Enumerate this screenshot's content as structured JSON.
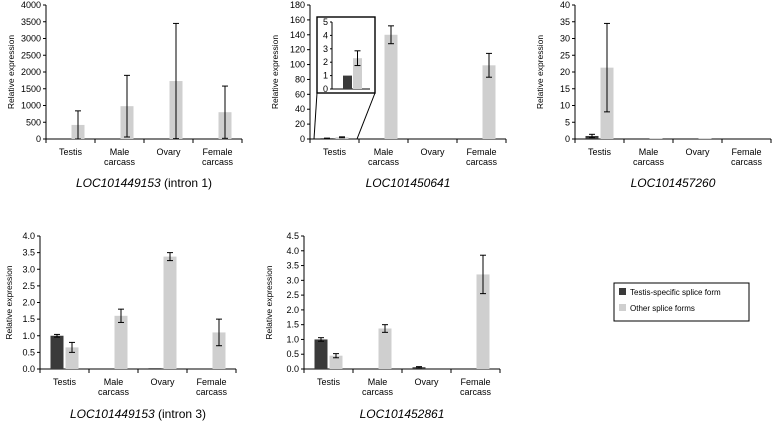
{
  "colors": {
    "testis_specific": "#3a3a3a",
    "other": "#cfcfcf",
    "axis": "#000000"
  },
  "legend": {
    "items": [
      {
        "label": "Testis-specific splice form",
        "color": "#3a3a3a"
      },
      {
        "label": "Other splice forms",
        "color": "#cfcfcf"
      }
    ]
  },
  "chart_data": [
    {
      "type": "bar",
      "gene": "LOC101449153",
      "suffix": " (intron 1)",
      "ylabel": "Relative expression",
      "ylim": [
        0,
        4000
      ],
      "yticks": [
        "0",
        "500",
        "1000",
        "1500",
        "2000",
        "2500",
        "3000",
        "3500",
        "4000"
      ],
      "categories": [
        [
          "Testis"
        ],
        [
          "Male",
          "carcass"
        ],
        [
          "Ovary"
        ],
        [
          "Female",
          "carcass"
        ]
      ],
      "series": [
        {
          "name": "Testis-specific splice form",
          "values": [
            null,
            null,
            null,
            null
          ],
          "errors": [
            null,
            null,
            null,
            null
          ]
        },
        {
          "name": "Other splice forms",
          "values": [
            420,
            980,
            1730,
            800
          ],
          "errors": [
            420,
            920,
            1720,
            780
          ]
        }
      ]
    },
    {
      "type": "bar",
      "gene": "LOC101450641",
      "suffix": "",
      "ylabel": "Relative expression",
      "ylim": [
        0,
        180
      ],
      "yticks": [
        "0",
        "20",
        "40",
        "60",
        "80",
        "100",
        "120",
        "140",
        "160",
        "180"
      ],
      "categories": [
        [
          "Testis"
        ],
        [
          "Male",
          "carcass"
        ],
        [
          "Ovary"
        ],
        [
          "Female",
          "carcass"
        ]
      ],
      "series": [
        {
          "name": "Testis-specific splice form",
          "values": [
            1,
            null,
            null,
            null
          ],
          "errors": [
            0.1,
            null,
            null,
            null
          ]
        },
        {
          "name": "Other splice forms",
          "values": [
            2.3,
            140,
            null,
            99
          ],
          "errors": [
            0.6,
            12,
            null,
            16
          ]
        }
      ],
      "inset": {
        "ylim": [
          0,
          5
        ],
        "yticks": [
          "0",
          "1",
          "2",
          "3",
          "4",
          "5"
        ],
        "values_testis_specific": 1,
        "values_other": 2.3,
        "error_other": 0.55
      }
    },
    {
      "type": "bar",
      "gene": "LOC101457260",
      "suffix": "",
      "ylabel": "Relative expression",
      "ylim": [
        0,
        40
      ],
      "yticks": [
        "0",
        "5",
        "10",
        "15",
        "20",
        "25",
        "30",
        "35",
        "40"
      ],
      "categories": [
        [
          "Testis"
        ],
        [
          "Male",
          "carcass"
        ],
        [
          "Ovary"
        ],
        [
          "Female",
          "carcass"
        ]
      ],
      "series": [
        {
          "name": "Testis-specific splice form",
          "values": [
            0.9,
            null,
            null,
            null
          ],
          "errors": [
            0.5,
            null,
            null,
            null
          ]
        },
        {
          "name": "Other splice forms",
          "values": [
            21.3,
            0.1,
            0.1,
            null
          ],
          "errors": [
            13.2,
            null,
            null,
            null
          ]
        }
      ]
    },
    {
      "type": "bar",
      "gene": "LOC101449153",
      "suffix": " (intron 3)",
      "ylabel": "Relative expression",
      "ylim": [
        0,
        4.0
      ],
      "yticks": [
        "0.0",
        "0.5",
        "1.0",
        "1.5",
        "2.0",
        "2.5",
        "3.0",
        "3.5",
        "4.0"
      ],
      "categories": [
        [
          "Testis"
        ],
        [
          "Male",
          "carcass"
        ],
        [
          "Ovary"
        ],
        [
          "Female",
          "carcass"
        ]
      ],
      "series": [
        {
          "name": "Testis-specific splice form",
          "values": [
            1.0,
            null,
            0.02,
            null
          ],
          "errors": [
            0.04,
            null,
            null,
            null
          ]
        },
        {
          "name": "Other splice forms",
          "values": [
            0.65,
            1.6,
            3.38,
            1.1
          ],
          "errors": [
            0.15,
            0.2,
            0.12,
            0.4
          ]
        }
      ]
    },
    {
      "type": "bar",
      "gene": "LOC101452861",
      "suffix": "",
      "ylabel": "Relative expression",
      "ylim": [
        0,
        4.5
      ],
      "yticks": [
        "0.0",
        "0.5",
        "1.0",
        "1.5",
        "2.0",
        "2.5",
        "3.0",
        "3.5",
        "4.0",
        "4.5"
      ],
      "categories": [
        [
          "Testis"
        ],
        [
          "Male",
          "carcass"
        ],
        [
          "Ovary"
        ],
        [
          "Female",
          "carcass"
        ]
      ],
      "series": [
        {
          "name": "Testis-specific splice form",
          "values": [
            1.0,
            null,
            0.06,
            null
          ],
          "errors": [
            0.06,
            null,
            0.02,
            null
          ]
        },
        {
          "name": "Other splice forms",
          "values": [
            0.45,
            1.37,
            null,
            3.2
          ],
          "errors": [
            0.07,
            0.13,
            null,
            0.65
          ]
        }
      ]
    }
  ]
}
